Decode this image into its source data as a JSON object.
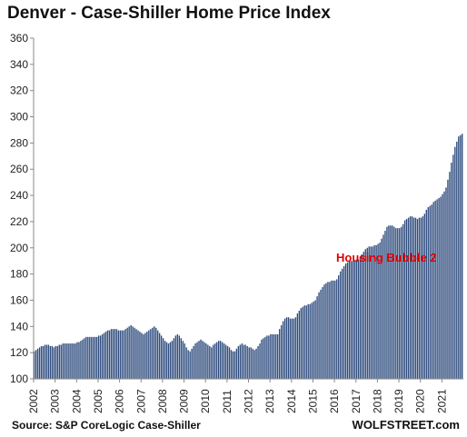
{
  "chart_data": {
    "type": "bar",
    "title": "Denver  - Case-Shiller Home Price Index",
    "ylim": [
      100,
      360
    ],
    "yticks": [
      100,
      120,
      140,
      160,
      180,
      200,
      220,
      240,
      260,
      280,
      300,
      320,
      340,
      360
    ],
    "xticks": [
      "2002",
      "2003",
      "2004",
      "2005",
      "2006",
      "2007",
      "2008",
      "2009",
      "2010",
      "2011",
      "2012",
      "2013",
      "2014",
      "2015",
      "2016",
      "2017",
      "2018",
      "2019",
      "2020",
      "2021"
    ],
    "start_year": 2002,
    "values_monthly": [
      121,
      122,
      123,
      124,
      125,
      125,
      126,
      126,
      126,
      125,
      125,
      124,
      125,
      125,
      126,
      126,
      127,
      127,
      127,
      127,
      127,
      127,
      127,
      127,
      128,
      128,
      129,
      130,
      131,
      132,
      132,
      132,
      132,
      132,
      132,
      132,
      133,
      133,
      134,
      135,
      136,
      137,
      137,
      138,
      138,
      138,
      138,
      137,
      137,
      137,
      137,
      138,
      139,
      140,
      141,
      140,
      139,
      138,
      137,
      136,
      135,
      134,
      135,
      136,
      137,
      138,
      139,
      140,
      139,
      137,
      135,
      133,
      131,
      129,
      128,
      127,
      128,
      129,
      131,
      133,
      134,
      133,
      131,
      129,
      127,
      124,
      122,
      121,
      123,
      125,
      127,
      128,
      129,
      130,
      129,
      128,
      127,
      126,
      125,
      124,
      126,
      127,
      128,
      129,
      129,
      128,
      127,
      126,
      125,
      124,
      122,
      121,
      121,
      123,
      125,
      126,
      127,
      126,
      126,
      125,
      124,
      124,
      123,
      122,
      123,
      125,
      127,
      130,
      131,
      132,
      133,
      133,
      134,
      134,
      134,
      134,
      134,
      138,
      141,
      144,
      146,
      147,
      147,
      146,
      146,
      146,
      147,
      150,
      152,
      154,
      155,
      156,
      156,
      157,
      157,
      158,
      159,
      160,
      163,
      166,
      168,
      170,
      172,
      173,
      174,
      174,
      175,
      175,
      175,
      176,
      179,
      182,
      184,
      186,
      188,
      189,
      190,
      190,
      190,
      190,
      191,
      191,
      193,
      195,
      197,
      199,
      200,
      201,
      201,
      201,
      202,
      202,
      203,
      204,
      207,
      210,
      213,
      216,
      217,
      217,
      217,
      216,
      215,
      215,
      215,
      216,
      218,
      221,
      222,
      223,
      224,
      224,
      223,
      223,
      222,
      223,
      223,
      224,
      226,
      229,
      231,
      232,
      233,
      235,
      236,
      237,
      238,
      239,
      241,
      243,
      246,
      252,
      258,
      265,
      271,
      277,
      281,
      285,
      286,
      287
    ],
    "annotations": [
      {
        "text": "Housing Bubble 2"
      }
    ],
    "colors": {
      "bar": "#2c4a7c",
      "annotation": "#e00000",
      "axis": "#888888"
    },
    "source": "Source: S&P CoreLogic Case-Shiller",
    "brand": "WOLFSTREET.com",
    "grid": false,
    "legend": "none"
  }
}
